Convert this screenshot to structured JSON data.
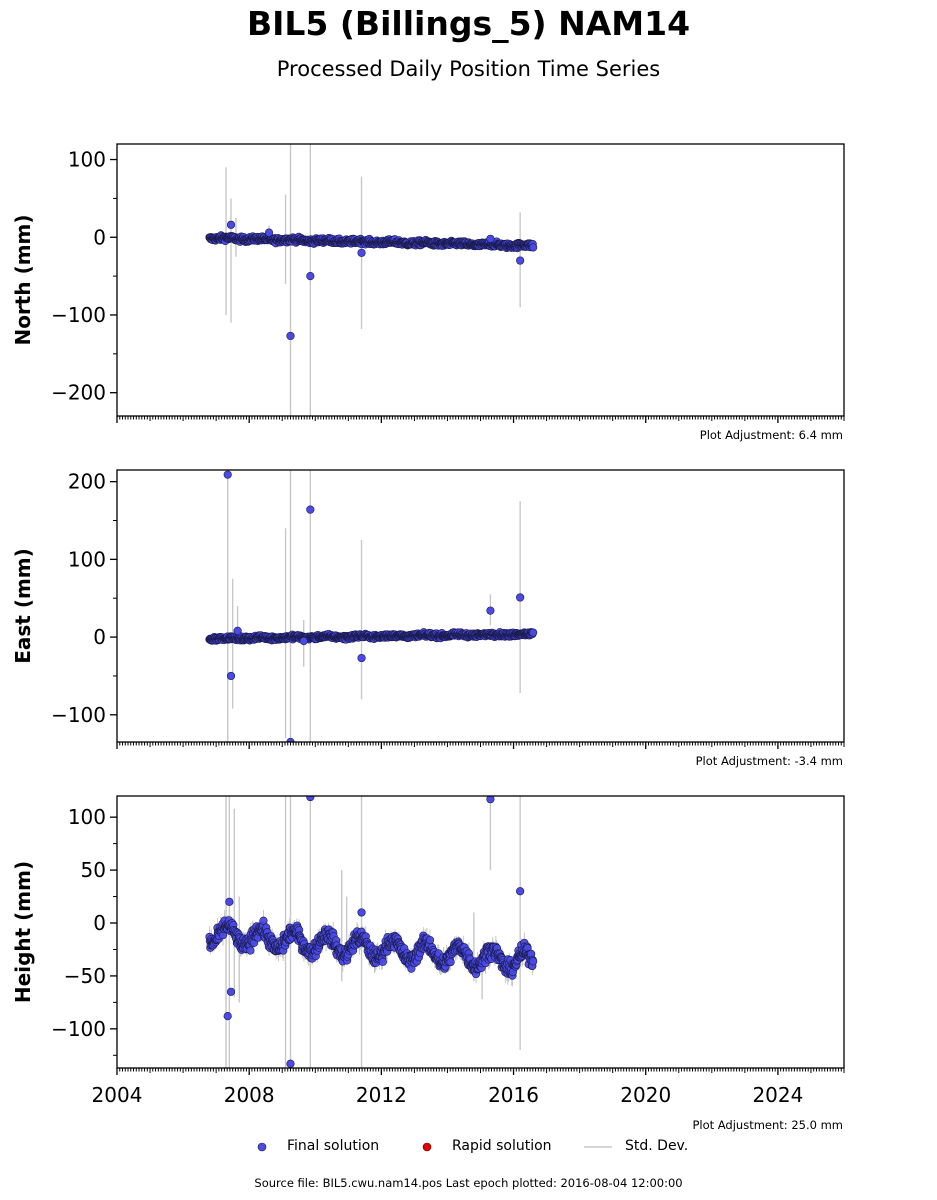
{
  "title": "BIL5 (Billings_5) NAM14",
  "subtitle": "Processed Daily Position Time Series",
  "colors": {
    "final": "#4a4ae6",
    "rapid": "#e00000",
    "stddev": "#c8c8c8",
    "edge": "#1a1a4a"
  },
  "legend": {
    "final": "Final solution",
    "rapid": "Rapid solution",
    "stddev": "Std. Dev."
  },
  "source_text": "Source file: BIL5.cwu.nam14.pos  Last epoch plotted: 2016-08-04 12:00:00",
  "chart_data": [
    {
      "type": "scatter",
      "ylabel": "North (mm)",
      "adjustment": "Plot Adjustment: 6.4 mm",
      "xlim": [
        2004,
        2026
      ],
      "ylim": [
        -230,
        120
      ],
      "yticks": [
        100,
        0,
        -100,
        -200
      ],
      "xticks": [
        2004,
        2008,
        2012,
        2016,
        2020,
        2024
      ],
      "show_xticklabels": false,
      "trend": {
        "x_start": 2006.8,
        "x_end": 2016.6,
        "y_start": -1,
        "y_end": -11,
        "scatter": 2.2,
        "seasonal": 0.8
      },
      "errbars": [
        [
          2007.3,
          -100,
          90
        ],
        [
          2007.45,
          -110,
          50
        ],
        [
          2009.1,
          -60,
          55
        ],
        [
          2009.25,
          -230,
          120
        ],
        [
          2009.85,
          -230,
          120
        ],
        [
          2011.4,
          -118,
          78
        ],
        [
          2016.2,
          -90,
          32
        ],
        [
          2007.6,
          -25,
          25
        ],
        [
          2008.6,
          -10,
          15
        ]
      ],
      "outliers": [
        [
          2007.45,
          16
        ],
        [
          2008.6,
          6
        ],
        [
          2009.25,
          -127
        ],
        [
          2009.85,
          -50
        ],
        [
          2011.4,
          -20
        ],
        [
          2015.3,
          -2
        ],
        [
          2016.2,
          -30
        ]
      ]
    },
    {
      "type": "scatter",
      "ylabel": "East (mm)",
      "adjustment": "Plot Adjustment: -3.4 mm",
      "xlim": [
        2004,
        2026
      ],
      "ylim": [
        -135,
        215
      ],
      "yticks": [
        200,
        100,
        0,
        -100
      ],
      "xticks": [
        2004,
        2008,
        2012,
        2016,
        2020,
        2024
      ],
      "show_xticklabels": false,
      "trend": {
        "x_start": 2006.8,
        "x_end": 2016.6,
        "y_start": -2,
        "y_end": 4,
        "scatter": 1.8,
        "seasonal": 0.7
      },
      "errbars": [
        [
          2007.35,
          -135,
          215
        ],
        [
          2007.5,
          -92,
          75
        ],
        [
          2007.65,
          -10,
          40
        ],
        [
          2009.1,
          -130,
          140
        ],
        [
          2009.25,
          -135,
          215
        ],
        [
          2009.85,
          -135,
          215
        ],
        [
          2009.65,
          -38,
          22
        ],
        [
          2011.4,
          -80,
          125
        ],
        [
          2015.3,
          15,
          55
        ],
        [
          2016.2,
          -72,
          175
        ]
      ],
      "outliers": [
        [
          2007.35,
          209
        ],
        [
          2007.45,
          -50
        ],
        [
          2007.65,
          8
        ],
        [
          2009.25,
          -135
        ],
        [
          2009.65,
          -5
        ],
        [
          2009.85,
          164
        ],
        [
          2011.4,
          -27
        ],
        [
          2015.3,
          34
        ],
        [
          2016.2,
          51
        ]
      ]
    },
    {
      "type": "scatter",
      "ylabel": "Height (mm)",
      "adjustment": "Plot Adjustment: 25.0 mm",
      "xlim": [
        2004,
        2026
      ],
      "ylim": [
        -137,
        120
      ],
      "yticks": [
        100,
        50,
        0,
        -50,
        -100
      ],
      "xticks": [
        2004,
        2008,
        2012,
        2016,
        2020,
        2024
      ],
      "xticklabels": [
        "2004",
        "2008",
        "2012",
        "2016",
        "2020",
        "2024"
      ],
      "show_xticklabels": true,
      "trend": {
        "x_start": 2006.8,
        "x_end": 2016.6,
        "y_start": -10,
        "y_end": -37,
        "scatter": 5,
        "seasonal": 9
      },
      "errbars": [
        [
          2007.3,
          -137,
          120
        ],
        [
          2007.4,
          -137,
          120
        ],
        [
          2007.55,
          -70,
          108
        ],
        [
          2007.7,
          -75,
          25
        ],
        [
          2009.1,
          -137,
          120
        ],
        [
          2009.25,
          -137,
          120
        ],
        [
          2009.85,
          -137,
          120
        ],
        [
          2010.8,
          -55,
          50
        ],
        [
          2010.95,
          -40,
          25
        ],
        [
          2011.4,
          -137,
          120
        ],
        [
          2014.8,
          -55,
          10
        ],
        [
          2015.3,
          50,
          120
        ],
        [
          2015.05,
          -72,
          -25
        ],
        [
          2016.2,
          -120,
          120
        ]
      ],
      "outliers": [
        [
          2007.4,
          20
        ],
        [
          2007.45,
          -65
        ],
        [
          2007.35,
          -88
        ],
        [
          2009.25,
          -133
        ],
        [
          2009.85,
          119
        ],
        [
          2011.4,
          10
        ],
        [
          2015.3,
          117
        ],
        [
          2016.2,
          30
        ]
      ]
    }
  ]
}
